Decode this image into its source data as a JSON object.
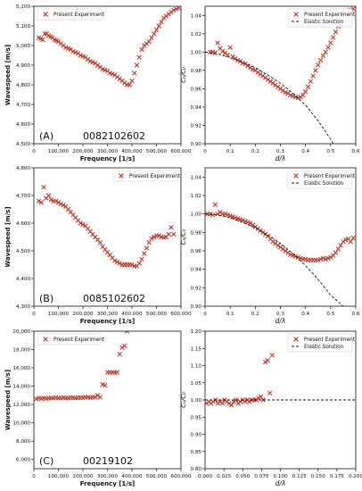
{
  "charts": [
    {
      "id": "A-left",
      "type": "scatter",
      "panel_label": "(A)",
      "specimen": "0082102602",
      "xlabel": "Frequency [1/s]",
      "ylabel": "Wavespeed [m/s]",
      "xlim": [
        0,
        600000
      ],
      "ylim": [
        4500,
        5200
      ],
      "xticks": [
        0,
        100000,
        200000,
        300000,
        400000,
        500000,
        600000
      ],
      "xtick_labels": [
        "0",
        "100,000",
        "200,000",
        "300,000",
        "400,000",
        "500,000",
        "600,000"
      ],
      "yticks": [
        4500,
        4600,
        4700,
        4800,
        4900,
        5000,
        5100,
        5200
      ],
      "ytick_labels": [
        "4,500",
        "4,600",
        "4,700",
        "4,800",
        "4,900",
        "5,000",
        "5,100",
        "5,200"
      ],
      "legend": {
        "position": "upper-left",
        "entries": [
          "Present Experiment"
        ]
      },
      "series": [
        {
          "name": "Present Experiment",
          "marker": "x",
          "x": [
            20000,
            28000,
            36000,
            44000,
            52000,
            60000,
            68000,
            76000,
            84000,
            92000,
            100000,
            110000,
            120000,
            130000,
            140000,
            150000,
            160000,
            170000,
            180000,
            190000,
            200000,
            210000,
            220000,
            230000,
            240000,
            250000,
            260000,
            270000,
            280000,
            290000,
            300000,
            310000,
            320000,
            330000,
            340000,
            350000,
            360000,
            370000,
            380000,
            390000,
            400000,
            410000,
            420000,
            430000,
            440000,
            450000,
            460000,
            470000,
            480000,
            490000,
            500000,
            510000,
            520000,
            530000,
            540000,
            550000,
            560000,
            570000,
            580000,
            590000
          ],
          "y": [
            5040,
            5035,
            5030,
            5060,
            5060,
            5050,
            5045,
            5040,
            5030,
            5025,
            5020,
            5010,
            5000,
            4990,
            4985,
            4980,
            4970,
            4965,
            4960,
            4950,
            4945,
            4940,
            4930,
            4920,
            4915,
            4910,
            4900,
            4890,
            4880,
            4875,
            4870,
            4860,
            4855,
            4850,
            4840,
            4830,
            4820,
            4810,
            4800,
            4800,
            4820,
            4860,
            4900,
            4940,
            4980,
            5000,
            5010,
            5020,
            5040,
            5060,
            5080,
            5100,
            5120,
            5140,
            5150,
            5160,
            5170,
            5180,
            5185,
            5190
          ]
        }
      ]
    },
    {
      "id": "A-right",
      "type": "scatter",
      "xlabel": "d/λ",
      "ylabel": "Cₙ/C₀",
      "xlim": [
        0,
        0.6
      ],
      "ylim": [
        0.9,
        1.05
      ],
      "xticks": [
        0,
        0.1,
        0.2,
        0.3,
        0.4,
        0.5,
        0.6
      ],
      "xtick_labels": [
        "0",
        "0.1",
        "0.2",
        "0.3",
        "0.4",
        "0.5",
        "0.6"
      ],
      "yticks": [
        0.9,
        0.92,
        0.94,
        0.96,
        0.98,
        1.0,
        1.02,
        1.04
      ],
      "ytick_labels": [
        "0.90",
        "0.92",
        "0.94",
        "0.96",
        "0.98",
        "1.00",
        "1.02",
        "1.04"
      ],
      "legend": {
        "position": "top-right",
        "entries": [
          "Present Experiment",
          "Elastic Solution"
        ]
      },
      "series": [
        {
          "name": "Present Experiment",
          "marker": "x",
          "x": [
            0.02,
            0.03,
            0.04,
            0.05,
            0.06,
            0.07,
            0.08,
            0.09,
            0.1,
            0.11,
            0.12,
            0.13,
            0.14,
            0.15,
            0.16,
            0.17,
            0.18,
            0.19,
            0.2,
            0.21,
            0.22,
            0.23,
            0.24,
            0.25,
            0.26,
            0.27,
            0.28,
            0.29,
            0.3,
            0.31,
            0.32,
            0.33,
            0.34,
            0.35,
            0.36,
            0.37,
            0.38,
            0.39,
            0.4,
            0.41,
            0.42,
            0.43,
            0.44,
            0.45,
            0.46,
            0.47,
            0.48,
            0.49,
            0.5,
            0.51,
            0.52,
            0.53,
            0.54,
            0.55,
            0.56,
            0.57,
            0.58,
            0.59
          ],
          "y": [
            1.0,
            1.0,
            0.999,
            1.01,
            1.004,
            1.001,
            0.999,
            0.997,
            1.005,
            0.995,
            0.993,
            0.991,
            0.99,
            0.988,
            0.987,
            0.985,
            0.983,
            0.981,
            0.98,
            0.978,
            0.976,
            0.974,
            0.972,
            0.97,
            0.968,
            0.966,
            0.964,
            0.962,
            0.96,
            0.958,
            0.956,
            0.955,
            0.953,
            0.952,
            0.951,
            0.95,
            0.951,
            0.953,
            0.957,
            0.962,
            0.968,
            0.974,
            0.98,
            0.986,
            0.991,
            0.996,
            1.0,
            1.005,
            1.01,
            1.016,
            1.022,
            1.028,
            1.034,
            1.04,
            1.045,
            1.045,
            1.046,
            1.047
          ]
        },
        {
          "name": "Elastic Solution",
          "style": "dashed",
          "x": [
            0,
            0.05,
            0.1,
            0.15,
            0.2,
            0.25,
            0.3,
            0.35,
            0.4,
            0.45,
            0.5,
            0.52
          ],
          "y": [
            1.0,
            0.998,
            0.994,
            0.989,
            0.983,
            0.975,
            0.966,
            0.955,
            0.942,
            0.925,
            0.905,
            0.895
          ]
        }
      ]
    },
    {
      "id": "B-left",
      "type": "scatter",
      "panel_label": "(B)",
      "specimen": "0085102602",
      "xlabel": "Frequency [1/s]",
      "ylabel": "Wavespeed [m/s]",
      "xlim": [
        0,
        600000
      ],
      "ylim": [
        4300,
        4800
      ],
      "xticks": [
        0,
        100000,
        200000,
        300000,
        400000,
        500000,
        600000
      ],
      "xtick_labels": [
        "0",
        "100,000",
        "200,000",
        "300,000",
        "400,000",
        "500,000",
        "600,000"
      ],
      "yticks": [
        4300,
        4400,
        4500,
        4600,
        4700,
        4800
      ],
      "ytick_labels": [
        "4,300",
        "4,400",
        "4,500",
        "4,600",
        "4,700",
        "4,800"
      ],
      "legend": {
        "position": "top-right",
        "entries": [
          "Present Experiment"
        ]
      },
      "series": [
        {
          "name": "Present Experiment",
          "marker": "x",
          "x": [
            20000,
            30000,
            40000,
            50000,
            60000,
            70000,
            80000,
            90000,
            100000,
            110000,
            120000,
            130000,
            140000,
            150000,
            160000,
            170000,
            180000,
            190000,
            200000,
            210000,
            220000,
            230000,
            240000,
            250000,
            260000,
            270000,
            280000,
            290000,
            300000,
            310000,
            320000,
            330000,
            340000,
            350000,
            360000,
            370000,
            380000,
            390000,
            400000,
            410000,
            420000,
            430000,
            440000,
            450000,
            460000,
            470000,
            480000,
            490000,
            500000,
            510000,
            520000,
            530000,
            540000,
            550000,
            560000,
            570000
          ],
          "y": [
            4680,
            4675,
            4730,
            4690,
            4700,
            4685,
            4680,
            4680,
            4675,
            4670,
            4665,
            4660,
            4650,
            4640,
            4630,
            4620,
            4610,
            4600,
            4595,
            4590,
            4580,
            4570,
            4560,
            4550,
            4540,
            4530,
            4515,
            4505,
            4495,
            4485,
            4475,
            4465,
            4460,
            4455,
            4450,
            4450,
            4450,
            4450,
            4450,
            4445,
            4445,
            4455,
            4470,
            4490,
            4510,
            4530,
            4545,
            4550,
            4555,
            4555,
            4550,
            4548,
            4550,
            4560,
            4585,
            4560
          ]
        }
      ]
    },
    {
      "id": "B-right",
      "type": "scatter",
      "xlabel": "d/λ",
      "ylabel": "Cₙ/C₀",
      "xlim": [
        0,
        0.6
      ],
      "ylim": [
        0.9,
        1.05
      ],
      "xticks": [
        0,
        0.1,
        0.2,
        0.3,
        0.4,
        0.5,
        0.6
      ],
      "xtick_labels": [
        "0",
        "0.1",
        "0.2",
        "0.3",
        "0.4",
        "0.5",
        "0.6"
      ],
      "yticks": [
        0.9,
        0.92,
        0.94,
        0.96,
        0.98,
        1.0,
        1.02,
        1.04
      ],
      "ytick_labels": [
        "0.90",
        "0.92",
        "0.94",
        "0.96",
        "0.98",
        "1.00",
        "1.02",
        "1.04"
      ],
      "legend": {
        "position": "top-right",
        "entries": [
          "Present Experiment",
          "Elastic Solution"
        ]
      },
      "series": [
        {
          "name": "Present Experiment",
          "marker": "x",
          "x": [
            0.01,
            0.02,
            0.03,
            0.04,
            0.05,
            0.06,
            0.07,
            0.08,
            0.09,
            0.1,
            0.11,
            0.12,
            0.13,
            0.14,
            0.15,
            0.16,
            0.17,
            0.18,
            0.19,
            0.2,
            0.21,
            0.22,
            0.23,
            0.24,
            0.25,
            0.26,
            0.27,
            0.28,
            0.29,
            0.3,
            0.31,
            0.32,
            0.33,
            0.34,
            0.35,
            0.36,
            0.37,
            0.38,
            0.39,
            0.4,
            0.41,
            0.42,
            0.43,
            0.44,
            0.45,
            0.46,
            0.47,
            0.48,
            0.49,
            0.5,
            0.51,
            0.52,
            0.53,
            0.54,
            0.55,
            0.56,
            0.57,
            0.58,
            0.59
          ],
          "y": [
            1.0,
            1.0,
            0.999,
            1.01,
            1.0,
            1.002,
            1.0,
            1.0,
            0.999,
            0.998,
            0.997,
            0.996,
            0.995,
            0.994,
            0.993,
            0.992,
            0.991,
            0.99,
            0.988,
            0.986,
            0.984,
            0.982,
            0.98,
            0.978,
            0.976,
            0.973,
            0.97,
            0.968,
            0.966,
            0.964,
            0.962,
            0.96,
            0.958,
            0.956,
            0.955,
            0.954,
            0.953,
            0.952,
            0.951,
            0.951,
            0.95,
            0.95,
            0.95,
            0.95,
            0.95,
            0.951,
            0.952,
            0.951,
            0.952,
            0.953,
            0.955,
            0.958,
            0.962,
            0.966,
            0.97,
            0.972,
            0.973,
            0.97,
            0.974
          ]
        },
        {
          "name": "Elastic Solution",
          "style": "dashed",
          "x": [
            0,
            0.05,
            0.1,
            0.15,
            0.2,
            0.25,
            0.3,
            0.35,
            0.4,
            0.45,
            0.5,
            0.55
          ],
          "y": [
            1.0,
            0.999,
            0.996,
            0.991,
            0.985,
            0.977,
            0.968,
            0.957,
            0.944,
            0.929,
            0.912,
            0.9
          ]
        }
      ]
    },
    {
      "id": "C-left",
      "type": "scatter",
      "panel_label": "(C)",
      "specimen": "00219102",
      "xlabel": "Frequency [1/s]",
      "ylabel": "Wavespeed [m/s]",
      "xlim": [
        0,
        600000
      ],
      "ylim": [
        5000,
        20000
      ],
      "xticks": [
        0,
        100000,
        200000,
        300000,
        400000,
        500000,
        600000
      ],
      "xtick_labels": [
        "0",
        "100,000",
        "200,000",
        "300,000",
        "400,000",
        "500,000",
        "600,000"
      ],
      "yticks": [
        6000,
        8000,
        10000,
        12000,
        14000,
        16000,
        18000,
        20000
      ],
      "ytick_labels": [
        "6,000",
        "8,000",
        "10,000",
        "12,000",
        "14,000",
        "16,000",
        "18,000",
        "20,000"
      ],
      "legend": {
        "position": "upper-left",
        "entries": [
          "Present Experiment"
        ]
      },
      "series": [
        {
          "name": "Present Experiment",
          "marker": "x",
          "x": [
            10000,
            20000,
            30000,
            40000,
            50000,
            60000,
            70000,
            80000,
            90000,
            100000,
            110000,
            120000,
            130000,
            140000,
            150000,
            160000,
            170000,
            180000,
            190000,
            200000,
            210000,
            220000,
            230000,
            240000,
            250000,
            260000,
            270000,
            280000,
            290000,
            300000,
            310000,
            320000,
            330000,
            340000,
            350000,
            360000,
            370000,
            380000
          ],
          "y": [
            12600,
            12700,
            12650,
            12700,
            12650,
            12700,
            12700,
            12700,
            12750,
            12700,
            12700,
            12750,
            12700,
            12700,
            12750,
            12750,
            12700,
            12750,
            12750,
            12750,
            12800,
            12800,
            12750,
            12800,
            12800,
            13000,
            12800,
            14200,
            14100,
            15500,
            15500,
            15500,
            15500,
            15500,
            17500,
            18200,
            18400,
            20000
          ]
        }
      ]
    },
    {
      "id": "C-right",
      "type": "scatter",
      "xlabel": "d/λ",
      "ylabel": "Cₙ/C₀",
      "xlim": [
        0,
        0.2
      ],
      "ylim": [
        0.8,
        1.2
      ],
      "xticks": [
        0,
        0.025,
        0.05,
        0.075,
        0.1,
        0.125,
        0.15,
        0.175,
        0.2
      ],
      "xtick_labels": [
        "0.000",
        "0.025",
        "0.050",
        "0.075",
        "0.100",
        "0.125",
        "0.150",
        "0.175",
        "0.200"
      ],
      "yticks": [
        0.8,
        0.85,
        0.9,
        0.95,
        1.0,
        1.05,
        1.1,
        1.15,
        1.2
      ],
      "ytick_labels": [
        "0.80",
        "0.85",
        "0.90",
        "0.95",
        "1.00",
        "1.05",
        "1.10",
        "1.15",
        "1.20"
      ],
      "legend": {
        "position": "top-right",
        "entries": [
          "Present Experiment",
          "Elastic Solution"
        ]
      },
      "series": [
        {
          "name": "Present Experiment",
          "marker": "x",
          "x": [
            0.002,
            0.005,
            0.008,
            0.011,
            0.014,
            0.017,
            0.02,
            0.023,
            0.026,
            0.029,
            0.032,
            0.035,
            0.038,
            0.041,
            0.044,
            0.047,
            0.05,
            0.053,
            0.056,
            0.059,
            0.062,
            0.065,
            0.068,
            0.071,
            0.074,
            0.077,
            0.08,
            0.083,
            0.086,
            0.089
          ],
          "y": [
            0.99,
            0.995,
            0.99,
            0.995,
            1.0,
            0.99,
            0.995,
            0.99,
            1.0,
            0.995,
            0.99,
            0.985,
            0.995,
            1.0,
            0.99,
            0.995,
            1.0,
            0.995,
            1.0,
            0.995,
            1.0,
            1.0,
            1.0,
            1.005,
            1.01,
            1.0,
            1.11,
            1.115,
            1.02,
            1.13
          ]
        },
        {
          "name": "Elastic Solution",
          "style": "dashed",
          "x": [
            0,
            0.2
          ],
          "y": [
            1.0,
            1.0
          ]
        }
      ]
    }
  ]
}
